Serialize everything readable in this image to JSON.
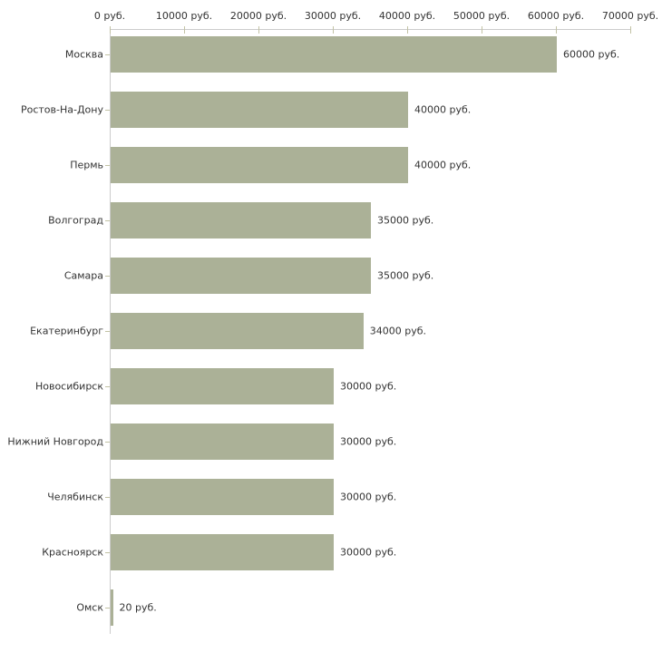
{
  "chart_data": {
    "type": "bar",
    "orientation": "horizontal",
    "categories": [
      "Москва",
      "Ростов-На-Дону",
      "Пермь",
      "Волгоград",
      "Самара",
      "Екатеринбург",
      "Новосибирск",
      "Нижний Новгород",
      "Челябинск",
      "Красноярск",
      "Омск"
    ],
    "values": [
      60000,
      40000,
      40000,
      35000,
      35000,
      34000,
      30000,
      30000,
      30000,
      30000,
      20
    ],
    "value_labels": [
      "60000 руб.",
      "40000 руб.",
      "40000 руб.",
      "35000 руб.",
      "35000 руб.",
      "34000 руб.",
      "30000 руб.",
      "30000 руб.",
      "30000 руб.",
      "30000 руб.",
      "20 руб."
    ],
    "x_axis": {
      "min": 0,
      "max": 70000,
      "tick_step": 10000,
      "position": "top",
      "tick_labels": [
        "0 руб.",
        "10000 руб.",
        "20000 руб.",
        "30000 руб.",
        "40000 руб.",
        "50000 руб.",
        "60000 руб.",
        "70000 руб."
      ]
    },
    "legend": null,
    "grid": false,
    "styles": {
      "bar_color": "#abb197",
      "axis_line_color": "#cccccc",
      "tick_mark_color": "#c2c2a4",
      "text_color": "#333333",
      "background_color": "#ffffff"
    }
  }
}
